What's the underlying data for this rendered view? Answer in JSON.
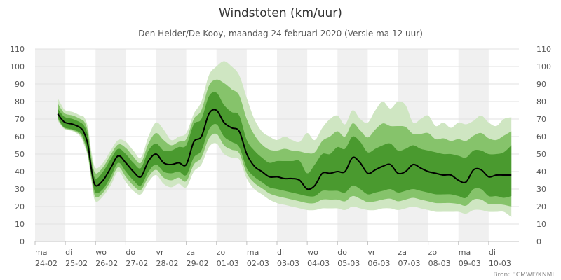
{
  "chart_data": {
    "type": "area",
    "title": "Windstoten (km/uur)",
    "subtitle": "Den Helder/De Kooy, maandag 24 februari 2020 (Versie ma 12 uur)",
    "credit": "Bron: ECMWF/KNMI",
    "ylim": [
      0,
      110
    ],
    "yticks": [
      0,
      10,
      20,
      30,
      40,
      50,
      60,
      70,
      80,
      90,
      100,
      110
    ],
    "xlim": [
      0,
      16
    ],
    "xticks": [
      {
        "day": "ma",
        "date": "24-02"
      },
      {
        "day": "di",
        "date": "25-02"
      },
      {
        "day": "wo",
        "date": "26-02"
      },
      {
        "day": "do",
        "date": "27-02"
      },
      {
        "day": "vr",
        "date": "28-02"
      },
      {
        "day": "za",
        "date": "29-02"
      },
      {
        "day": "zo",
        "date": "01-03"
      },
      {
        "day": "ma",
        "date": "02-03"
      },
      {
        "day": "di",
        "date": "03-03"
      },
      {
        "day": "wo",
        "date": "04-03"
      },
      {
        "day": "do",
        "date": "05-03"
      },
      {
        "day": "vr",
        "date": "06-03"
      },
      {
        "day": "za",
        "date": "07-03"
      },
      {
        "day": "zo",
        "date": "08-03"
      },
      {
        "day": "ma",
        "date": "09-03"
      },
      {
        "day": "di",
        "date": "10-03"
      }
    ],
    "shaded_days": [
      0,
      2,
      4,
      6,
      8,
      10,
      12,
      14
    ],
    "colors": {
      "median": "#000000",
      "inner_band": "#4a9a2f",
      "middle_band": "#86c36b",
      "outer_band": "#cfe6c2",
      "day_shading": "#f0f0f0",
      "grid": "#e2e2e2",
      "axis": "#c0c0c0"
    },
    "x": [
      0.75,
      0.875,
      1,
      1.25,
      1.5,
      1.625,
      1.75,
      1.875,
      2,
      2.25,
      2.5,
      2.75,
      3,
      3.25,
      3.5,
      3.75,
      4,
      4.25,
      4.5,
      4.75,
      5,
      5.25,
      5.5,
      5.75,
      6,
      6.25,
      6.5,
      6.75,
      7,
      7.25,
      7.5,
      7.75,
      8,
      8.25,
      8.5,
      8.75,
      9,
      9.25,
      9.5,
      9.75,
      10,
      10.25,
      10.5,
      10.75,
      11,
      11.25,
      11.5,
      11.75,
      12,
      12.25,
      12.5,
      12.75,
      13,
      13.25,
      13.5,
      13.75,
      14,
      14.25,
      14.5,
      14.75,
      15,
      15.25,
      15.5,
      15.75
    ],
    "series": [
      {
        "role": "median",
        "values": [
          73,
          70,
          68,
          67,
          65,
          62,
          55,
          40,
          32,
          35,
          42,
          49,
          45,
          40,
          37,
          46,
          50,
          45,
          44,
          45,
          44,
          57,
          60,
          73,
          75,
          68,
          65,
          63,
          50,
          43,
          40,
          37,
          37,
          36,
          36,
          35,
          30,
          32,
          39,
          39,
          40,
          40,
          48,
          45,
          39,
          41,
          43,
          44,
          39,
          40,
          44,
          42,
          40,
          39,
          38,
          38,
          35,
          34,
          41,
          41,
          37,
          38,
          38,
          38
        ]
      },
      {
        "role": "p25",
        "values": [
          71,
          67,
          65,
          64,
          62,
          58,
          50,
          37,
          28,
          30,
          37,
          45,
          40,
          35,
          32,
          40,
          44,
          40,
          39,
          40,
          38,
          48,
          52,
          64,
          67,
          60,
          57,
          54,
          42,
          37,
          34,
          31,
          30,
          29,
          28,
          27,
          26,
          26,
          29,
          29,
          29,
          28,
          32,
          30,
          27,
          28,
          29,
          30,
          28,
          29,
          30,
          29,
          28,
          27,
          27,
          27,
          26,
          25,
          30,
          30,
          26,
          26,
          25,
          26
        ]
      },
      {
        "role": "p75",
        "values": [
          76,
          73,
          71,
          70,
          68,
          66,
          60,
          44,
          36,
          40,
          47,
          53,
          50,
          45,
          42,
          52,
          56,
          52,
          52,
          54,
          55,
          67,
          70,
          83,
          85,
          78,
          74,
          72,
          58,
          52,
          48,
          45,
          46,
          46,
          46,
          46,
          39,
          44,
          50,
          50,
          54,
          53,
          60,
          57,
          51,
          53,
          55,
          56,
          52,
          53,
          55,
          53,
          52,
          51,
          50,
          50,
          49,
          48,
          52,
          52,
          50,
          50,
          51,
          55
        ]
      },
      {
        "role": "min",
        "values": [
          69,
          66,
          64,
          63,
          60,
          55,
          48,
          33,
          23,
          26,
          32,
          40,
          34,
          29,
          27,
          34,
          38,
          33,
          31,
          33,
          31,
          40,
          44,
          54,
          56,
          50,
          48,
          47,
          36,
          30,
          27,
          24,
          22,
          21,
          20,
          19,
          18,
          18,
          19,
          19,
          19,
          18,
          20,
          19,
          18,
          18,
          19,
          19,
          18,
          19,
          20,
          19,
          18,
          17,
          17,
          17,
          17,
          16,
          18,
          18,
          17,
          17,
          17,
          14
        ]
      },
      {
        "role": "max",
        "values": [
          82,
          78,
          75,
          74,
          72,
          71,
          65,
          50,
          42,
          45,
          52,
          58,
          57,
          52,
          48,
          60,
          68,
          64,
          58,
          60,
          62,
          73,
          80,
          95,
          100,
          103,
          100,
          95,
          82,
          70,
          63,
          60,
          58,
          60,
          58,
          57,
          62,
          58,
          65,
          70,
          72,
          67,
          75,
          70,
          68,
          75,
          80,
          76,
          80,
          78,
          68,
          70,
          72,
          66,
          68,
          65,
          68,
          67,
          69,
          72,
          68,
          66,
          70,
          71
        ]
      }
    ]
  }
}
